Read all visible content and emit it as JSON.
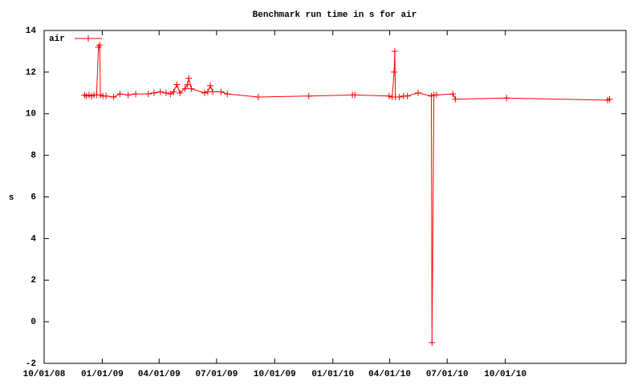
{
  "chart_data": {
    "type": "line",
    "title": "Benchmark run time in s for air",
    "y_label": "s",
    "x": [
      "2008-12-04",
      "2008-12-07",
      "2008-12-11",
      "2008-12-15",
      "2008-12-19",
      "2008-12-23",
      "2008-12-26",
      "2008-12-28",
      "2008-12-29",
      "2009-01-02",
      "2009-01-07",
      "2009-01-19",
      "2009-01-29",
      "2009-02-11",
      "2009-02-23",
      "2009-03-15",
      "2009-03-24",
      "2009-04-03",
      "2009-04-12",
      "2009-04-19",
      "2009-04-24",
      "2009-04-29",
      "2009-05-04",
      "2009-05-12",
      "2009-05-16",
      "2009-05-18",
      "2009-05-22",
      "2009-06-12",
      "2009-06-17",
      "2009-06-21",
      "2009-06-25",
      "2009-07-08",
      "2009-07-18",
      "2009-09-05",
      "2009-11-24",
      "2010-02-01",
      "2010-02-05",
      "2010-03-31",
      "2010-04-05",
      "2010-04-08",
      "2010-04-09",
      "2010-04-10",
      "2010-04-16",
      "2010-04-23",
      "2010-04-29",
      "2010-05-16",
      "2010-06-06",
      "2010-06-07",
      "2010-06-10",
      "2010-06-14",
      "2010-07-10",
      "2010-07-14",
      "2010-10-03",
      "2011-03-12",
      "2011-03-15"
    ],
    "series": [
      {
        "name": "air",
        "color": "#ff0000",
        "values": [
          10.9,
          10.85,
          10.9,
          10.85,
          10.9,
          10.9,
          13.2,
          13.3,
          10.9,
          10.85,
          10.85,
          10.8,
          10.95,
          10.9,
          10.95,
          10.95,
          11.0,
          11.05,
          11.0,
          10.95,
          11.05,
          11.4,
          11.0,
          11.2,
          11.4,
          11.7,
          11.2,
          11.0,
          11.05,
          11.35,
          11.05,
          11.05,
          10.95,
          10.8,
          10.85,
          10.9,
          10.9,
          10.85,
          10.8,
          12.0,
          13.0,
          10.8,
          10.8,
          10.85,
          10.85,
          11.0,
          10.85,
          -1,
          10.9,
          10.9,
          10.95,
          10.7,
          10.75,
          10.65,
          10.7
        ]
      }
    ],
    "xlim": [
      "2008-10-01",
      "2011-04-10"
    ],
    "xticks": [
      {
        "value": "2008-10-01",
        "label": "10/01/08"
      },
      {
        "value": "2009-01-01",
        "label": "01/01/09"
      },
      {
        "value": "2009-04-01",
        "label": "04/01/09"
      },
      {
        "value": "2009-07-01",
        "label": "07/01/09"
      },
      {
        "value": "2009-10-01",
        "label": "10/01/09"
      },
      {
        "value": "2010-01-01",
        "label": "01/01/10"
      },
      {
        "value": "2010-04-01",
        "label": "04/01/10"
      },
      {
        "value": "2010-07-01",
        "label": "07/01/10"
      },
      {
        "value": "2010-10-01",
        "label": "10/01/10"
      }
    ],
    "ylim": [
      -2,
      14
    ],
    "yticks": [
      -2,
      0,
      2,
      4,
      6,
      8,
      10,
      12,
      14
    ],
    "grid": false,
    "legend": "top-left"
  }
}
